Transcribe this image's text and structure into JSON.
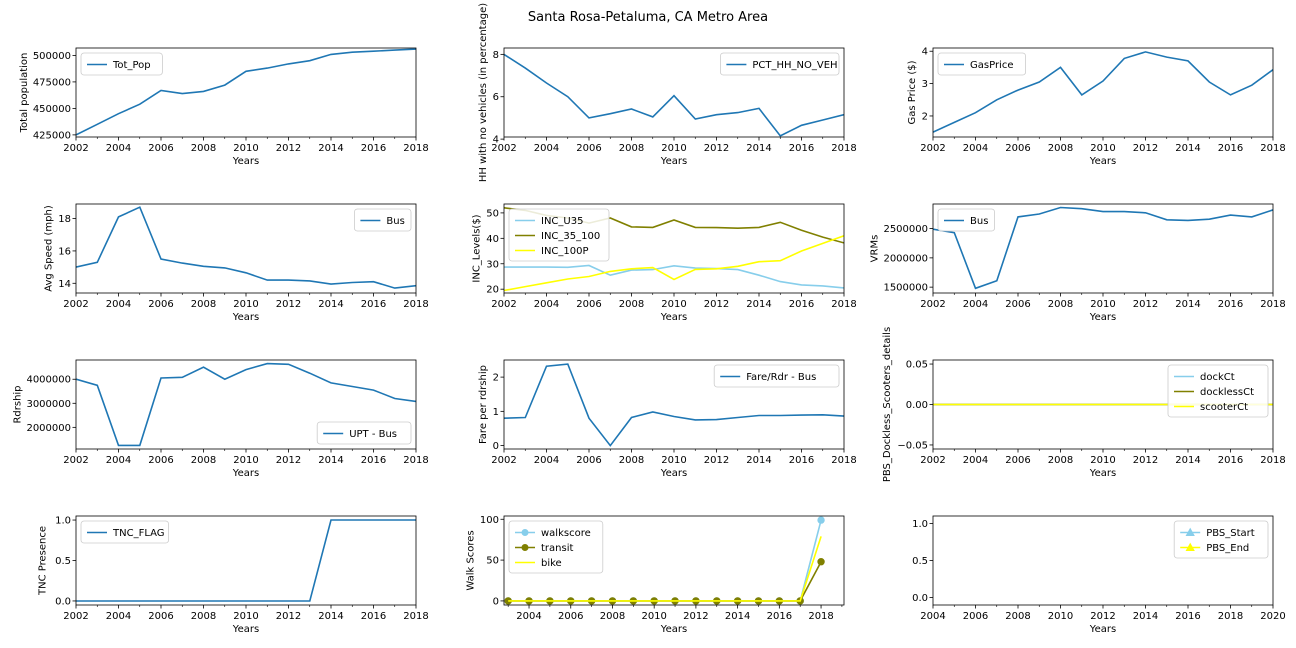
{
  "figure": {
    "title": "Santa Rosa-Petaluma, CA Metro Area"
  },
  "colors": {
    "blue": "#1f77b4",
    "skyblue": "#87ceeb",
    "olive": "#808000",
    "yellow": "#ffff00"
  },
  "chart_data": [
    {
      "type": "line",
      "title": "",
      "xlabel": "Years",
      "ylabel": "Total population",
      "xlim": [
        2002,
        2018
      ],
      "ylim": [
        423000,
        507000
      ],
      "xticks": [
        2002,
        2004,
        2006,
        2008,
        2010,
        2012,
        2014,
        2016,
        2018
      ],
      "yticks": [
        425000,
        450000,
        475000,
        500000
      ],
      "ytick_labels": [
        "425000",
        "450000",
        "475000",
        "500000"
      ],
      "legend_loc": "upper-left",
      "series": [
        {
          "name": "Tot_Pop",
          "color": "#1f77b4",
          "x": [
            2002,
            2003,
            2004,
            2005,
            2006,
            2007,
            2008,
            2009,
            2010,
            2011,
            2012,
            2013,
            2014,
            2015,
            2016,
            2017,
            2018
          ],
          "y": [
            425000,
            435000,
            445000,
            454000,
            467000,
            464000,
            466000,
            472000,
            485000,
            488000,
            492000,
            495000,
            501000,
            503000,
            504000,
            505000,
            506000
          ]
        }
      ]
    },
    {
      "type": "line",
      "title": "",
      "xlabel": "Years",
      "ylabel": "HH with no vehicles (in percentage)",
      "xlim": [
        2002,
        2018
      ],
      "ylim": [
        4.1,
        8.3
      ],
      "xticks": [
        2002,
        2004,
        2006,
        2008,
        2010,
        2012,
        2014,
        2016,
        2018
      ],
      "yticks": [
        4,
        6,
        8
      ],
      "ytick_labels": [
        "4",
        "6",
        "8"
      ],
      "legend_loc": "upper-right",
      "series": [
        {
          "name": "PCT_HH_NO_VEH",
          "color": "#1f77b4",
          "x": [
            2002,
            2003,
            2004,
            2005,
            2006,
            2007,
            2008,
            2009,
            2010,
            2011,
            2012,
            2013,
            2014,
            2015,
            2016,
            2017,
            2018
          ],
          "y": [
            8.0,
            7.35,
            6.65,
            6.0,
            5.0,
            5.2,
            5.42,
            5.05,
            6.05,
            4.95,
            5.15,
            5.25,
            5.45,
            4.15,
            4.65,
            4.9,
            5.15
          ]
        }
      ]
    },
    {
      "type": "line",
      "title": "",
      "xlabel": "Years",
      "ylabel": "Gas Price ($)",
      "xlim": [
        2002,
        2018
      ],
      "ylim": [
        1.35,
        4.1
      ],
      "xticks": [
        2002,
        2004,
        2006,
        2008,
        2010,
        2012,
        2014,
        2016,
        2018
      ],
      "yticks": [
        2,
        3,
        4
      ],
      "ytick_labels": [
        "2",
        "3",
        "4"
      ],
      "legend_loc": "upper-left",
      "series": [
        {
          "name": "GasPrice",
          "color": "#1f77b4",
          "x": [
            2002,
            2003,
            2004,
            2005,
            2006,
            2007,
            2008,
            2009,
            2010,
            2011,
            2012,
            2013,
            2014,
            2015,
            2016,
            2017,
            2018
          ],
          "y": [
            1.5,
            1.8,
            2.1,
            2.5,
            2.8,
            3.05,
            3.5,
            2.65,
            3.08,
            3.78,
            3.98,
            3.82,
            3.7,
            3.05,
            2.65,
            2.95,
            3.43
          ]
        }
      ]
    },
    {
      "type": "line",
      "title": "",
      "xlabel": "Years",
      "ylabel": "Avg Speed (mph)",
      "xlim": [
        2002,
        2018
      ],
      "ylim": [
        13.4,
        18.9
      ],
      "xticks": [
        2002,
        2004,
        2006,
        2008,
        2010,
        2012,
        2014,
        2016,
        2018
      ],
      "yticks": [
        14,
        16,
        18
      ],
      "ytick_labels": [
        "14",
        "16",
        "18"
      ],
      "legend_loc": "upper-right",
      "series": [
        {
          "name": "Bus",
          "color": "#1f77b4",
          "x": [
            2002,
            2003,
            2004,
            2005,
            2006,
            2007,
            2008,
            2009,
            2010,
            2011,
            2012,
            2013,
            2014,
            2015,
            2016,
            2017,
            2018
          ],
          "y": [
            15.0,
            15.3,
            18.1,
            18.7,
            15.5,
            15.25,
            15.05,
            14.95,
            14.65,
            14.2,
            14.2,
            14.15,
            13.95,
            14.05,
            14.1,
            13.7,
            13.85
          ]
        }
      ]
    },
    {
      "type": "line",
      "title": "",
      "xlabel": "Years",
      "ylabel": "INC_Levels($)",
      "xlim": [
        2002,
        2018
      ],
      "ylim": [
        18.5,
        53.5
      ],
      "xticks": [
        2002,
        2004,
        2006,
        2008,
        2010,
        2012,
        2014,
        2016,
        2018
      ],
      "yticks": [
        20,
        30,
        40,
        50
      ],
      "ytick_labels": [
        "20",
        "30",
        "40",
        "50"
      ],
      "legend_loc": "upper-left",
      "series": [
        {
          "name": "INC_U35",
          "color": "#87ceeb",
          "x": [
            2002,
            2003,
            2004,
            2005,
            2006,
            2007,
            2008,
            2009,
            2010,
            2011,
            2012,
            2013,
            2014,
            2015,
            2016,
            2017,
            2018
          ],
          "y": [
            28.7,
            28.7,
            28.7,
            28.6,
            29.3,
            25.5,
            27.5,
            27.7,
            29.2,
            28.3,
            28.1,
            27.7,
            25.5,
            23.0,
            21.7,
            21.3,
            20.5
          ]
        },
        {
          "name": "INC_35_100",
          "color": "#808000",
          "x": [
            2002,
            2003,
            2004,
            2005,
            2006,
            2007,
            2008,
            2009,
            2010,
            2011,
            2012,
            2013,
            2014,
            2015,
            2016,
            2017,
            2018
          ],
          "y": [
            52.0,
            51.0,
            49.0,
            48.0,
            46.0,
            48.0,
            44.5,
            44.3,
            47.2,
            44.3,
            44.2,
            44.0,
            44.3,
            46.3,
            43.2,
            40.5,
            38.2
          ]
        },
        {
          "name": "INC_100P",
          "color": "#ffff00",
          "x": [
            2002,
            2003,
            2004,
            2005,
            2006,
            2007,
            2008,
            2009,
            2010,
            2011,
            2012,
            2013,
            2014,
            2015,
            2016,
            2017,
            2018
          ],
          "y": [
            19.5,
            21.0,
            22.5,
            24.0,
            25.0,
            27.0,
            28.0,
            28.5,
            23.8,
            27.8,
            28.0,
            29.0,
            30.8,
            31.2,
            35.0,
            38.0,
            41.0
          ]
        }
      ]
    },
    {
      "type": "line",
      "title": "",
      "xlabel": "Years",
      "ylabel": "VRMs",
      "xlim": [
        2002,
        2018
      ],
      "ylim": [
        1400000,
        2920000
      ],
      "xticks": [
        2002,
        2004,
        2006,
        2008,
        2010,
        2012,
        2014,
        2016,
        2018
      ],
      "yticks": [
        1500000,
        2000000,
        2500000
      ],
      "ytick_labels": [
        "1500000",
        "2000000",
        "2500000"
      ],
      "legend_loc": "upper-left",
      "series": [
        {
          "name": "Bus",
          "color": "#1f77b4",
          "x": [
            2002,
            2003,
            2004,
            2005,
            2006,
            2007,
            2008,
            2009,
            2010,
            2011,
            2012,
            2013,
            2014,
            2015,
            2016,
            2017,
            2018
          ],
          "y": [
            2490000,
            2430000,
            1480000,
            1610000,
            2700000,
            2750000,
            2860000,
            2840000,
            2790000,
            2790000,
            2770000,
            2650000,
            2640000,
            2660000,
            2730000,
            2700000,
            2820000
          ]
        }
      ]
    },
    {
      "type": "line",
      "title": "",
      "xlabel": "Years",
      "ylabel": "Rdrship",
      "xlim": [
        2002,
        2018
      ],
      "ylim": [
        1100000,
        4800000
      ],
      "xticks": [
        2002,
        2004,
        2006,
        2008,
        2010,
        2012,
        2014,
        2016,
        2018
      ],
      "yticks": [
        2000000,
        3000000,
        4000000
      ],
      "ytick_labels": [
        "2000000",
        "3000000",
        "4000000"
      ],
      "legend_loc": "lower-right",
      "series": [
        {
          "name": "UPT - Bus",
          "color": "#1f77b4",
          "x": [
            2002,
            2003,
            2004,
            2005,
            2006,
            2007,
            2008,
            2009,
            2010,
            2011,
            2012,
            2013,
            2014,
            2015,
            2016,
            2017,
            2018
          ],
          "y": [
            4000000,
            3750000,
            1250000,
            1250000,
            4050000,
            4080000,
            4500000,
            4000000,
            4400000,
            4650000,
            4620000,
            4250000,
            3850000,
            3700000,
            3550000,
            3200000,
            3080000
          ]
        }
      ]
    },
    {
      "type": "line",
      "title": "",
      "xlabel": "Years",
      "ylabel": "Fare per rdrship",
      "xlim": [
        2002,
        2018
      ],
      "ylim": [
        -0.1,
        2.5
      ],
      "xticks": [
        2002,
        2004,
        2006,
        2008,
        2010,
        2012,
        2014,
        2016,
        2018
      ],
      "yticks": [
        0,
        1,
        2
      ],
      "ytick_labels": [
        "0",
        "1",
        "2"
      ],
      "legend_loc": "upper-right",
      "series": [
        {
          "name": "Fare/Rdr - Bus",
          "color": "#1f77b4",
          "x": [
            2002,
            2003,
            2004,
            2005,
            2006,
            2007,
            2008,
            2009,
            2010,
            2011,
            2012,
            2013,
            2014,
            2015,
            2016,
            2017,
            2018
          ],
          "y": [
            0.8,
            0.82,
            2.32,
            2.38,
            0.8,
            0.0,
            0.82,
            0.98,
            0.85,
            0.75,
            0.76,
            0.82,
            0.88,
            0.88,
            0.89,
            0.9,
            0.86
          ]
        }
      ]
    },
    {
      "type": "line",
      "title": "",
      "xlabel": "Years",
      "ylabel": "PBS_Dockless_Scooters_details",
      "xlim": [
        2002,
        2018
      ],
      "ylim": [
        -0.055,
        0.055
      ],
      "xticks": [
        2002,
        2004,
        2006,
        2008,
        2010,
        2012,
        2014,
        2016,
        2018
      ],
      "yticks": [
        -0.05,
        0.0,
        0.05
      ],
      "ytick_labels": [
        "−0.05",
        "0.00",
        "0.05"
      ],
      "legend_loc": "upper-right",
      "series": [
        {
          "name": "dockCt",
          "color": "#87ceeb",
          "x": [
            2002,
            2003,
            2004,
            2005,
            2006,
            2007,
            2008,
            2009,
            2010,
            2011,
            2012,
            2013,
            2014,
            2015,
            2016,
            2017,
            2018
          ],
          "y": [
            0,
            0,
            0,
            0,
            0,
            0,
            0,
            0,
            0,
            0,
            0,
            0,
            0,
            0,
            0,
            0,
            0
          ]
        },
        {
          "name": "docklessCt",
          "color": "#808000",
          "x": [
            2002,
            2003,
            2004,
            2005,
            2006,
            2007,
            2008,
            2009,
            2010,
            2011,
            2012,
            2013,
            2014,
            2015,
            2016,
            2017,
            2018
          ],
          "y": [
            0,
            0,
            0,
            0,
            0,
            0,
            0,
            0,
            0,
            0,
            0,
            0,
            0,
            0,
            0,
            0,
            0
          ]
        },
        {
          "name": "scooterCt",
          "color": "#ffff00",
          "x": [
            2002,
            2003,
            2004,
            2005,
            2006,
            2007,
            2008,
            2009,
            2010,
            2011,
            2012,
            2013,
            2014,
            2015,
            2016,
            2017,
            2018
          ],
          "y": [
            0,
            0,
            0,
            0,
            0,
            0,
            0,
            0,
            0,
            0,
            0,
            0,
            0,
            0,
            0,
            0,
            0
          ]
        }
      ]
    },
    {
      "type": "line",
      "title": "",
      "xlabel": "Years",
      "ylabel": "TNC Presence",
      "xlim": [
        2002,
        2018
      ],
      "ylim": [
        -0.05,
        1.05
      ],
      "xticks": [
        2002,
        2004,
        2006,
        2008,
        2010,
        2012,
        2014,
        2016,
        2018
      ],
      "yticks": [
        0.0,
        0.5,
        1.0
      ],
      "ytick_labels": [
        "0.0",
        "0.5",
        "1.0"
      ],
      "legend_loc": "upper-left",
      "series": [
        {
          "name": "TNC_FLAG",
          "color": "#1f77b4",
          "x": [
            2002,
            2003,
            2004,
            2005,
            2006,
            2007,
            2008,
            2009,
            2010,
            2011,
            2012,
            2013,
            2014,
            2015,
            2016,
            2017,
            2018
          ],
          "y": [
            0,
            0,
            0,
            0,
            0,
            0,
            0,
            0,
            0,
            0,
            0,
            0,
            1,
            1,
            1,
            1,
            1
          ]
        }
      ]
    },
    {
      "type": "line",
      "title": "",
      "xlabel": "Years",
      "ylabel": "Walk Scores",
      "xlim": [
        2002.8,
        2019.1
      ],
      "ylim": [
        -5,
        104
      ],
      "xticks": [
        2004,
        2006,
        2008,
        2010,
        2012,
        2014,
        2016,
        2018
      ],
      "yticks": [
        0,
        50,
        100
      ],
      "ytick_labels": [
        "0",
        "50",
        "100"
      ],
      "legend_loc": "upper-left",
      "series": [
        {
          "name": "walkscore",
          "color": "#87ceeb",
          "marker": "circle",
          "x": [
            2003,
            2004,
            2005,
            2006,
            2007,
            2008,
            2009,
            2010,
            2011,
            2012,
            2013,
            2014,
            2015,
            2016,
            2017,
            2018
          ],
          "y": [
            0,
            0,
            0,
            0,
            0,
            0,
            0,
            0,
            0,
            0,
            0,
            0,
            0,
            0,
            0,
            99
          ]
        },
        {
          "name": "transit",
          "color": "#808000",
          "marker": "circle",
          "x": [
            2003,
            2004,
            2005,
            2006,
            2007,
            2008,
            2009,
            2010,
            2011,
            2012,
            2013,
            2014,
            2015,
            2016,
            2017,
            2018
          ],
          "y": [
            0,
            0,
            0,
            0,
            0,
            0,
            0,
            0,
            0,
            0,
            0,
            0,
            0,
            0,
            0,
            48
          ]
        },
        {
          "name": "bike",
          "color": "#ffff00",
          "marker": "none",
          "x": [
            2003,
            2004,
            2005,
            2006,
            2007,
            2008,
            2009,
            2010,
            2011,
            2012,
            2013,
            2014,
            2015,
            2016,
            2017,
            2018
          ],
          "y": [
            0,
            0,
            0,
            0,
            0,
            0,
            0,
            0,
            0,
            0,
            0,
            0,
            0,
            0,
            0,
            79
          ]
        }
      ]
    },
    {
      "type": "line",
      "title": "",
      "xlabel": "Years",
      "ylabel": "",
      "xlim": [
        2004,
        2020
      ],
      "ylim": [
        -0.1,
        1.1
      ],
      "xticks": [
        2004,
        2006,
        2008,
        2010,
        2012,
        2014,
        2016,
        2018,
        2020
      ],
      "yticks": [
        0.0,
        0.5,
        1.0
      ],
      "ytick_labels": [
        "0.0",
        "0.5",
        "1.0"
      ],
      "legend_loc": "upper-right",
      "series": [
        {
          "name": "PBS_Start",
          "color": "#87ceeb",
          "marker": "triangle",
          "x": [],
          "y": []
        },
        {
          "name": "PBS_End",
          "color": "#ffff00",
          "marker": "triangle",
          "x": [],
          "y": []
        }
      ]
    }
  ]
}
